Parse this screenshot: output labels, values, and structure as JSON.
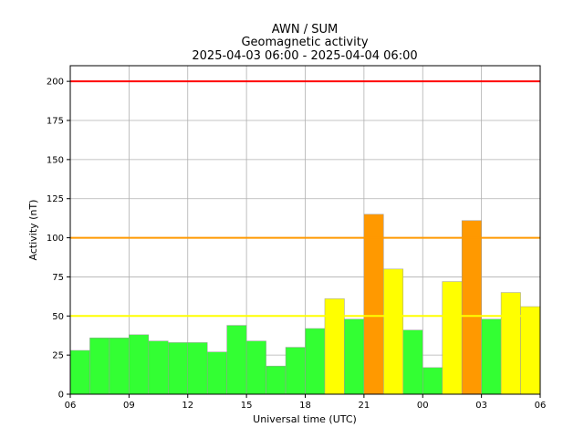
{
  "chart_data": {
    "type": "bar",
    "title_lines": [
      "AWN / SUM",
      "Geomagnetic activity",
      "2025-04-03 06:00 - 2025-04-04 06:00"
    ],
    "xlabel": "Universal time (UTC)",
    "ylabel": "Activity (nT)",
    "x_tick_labels": [
      "06",
      "09",
      "12",
      "15",
      "18",
      "21",
      "00",
      "03",
      "06"
    ],
    "y_ticks": [
      0,
      25,
      50,
      75,
      100,
      125,
      150,
      175,
      200
    ],
    "ylim": [
      0,
      210
    ],
    "grid": true,
    "values": [
      28,
      36,
      36,
      38,
      34,
      33,
      33,
      27,
      44,
      34,
      18,
      30,
      42,
      61,
      48,
      115,
      80,
      41,
      17,
      72,
      111,
      48,
      65,
      56
    ],
    "bar_colors": [
      "#33ff33",
      "#33ff33",
      "#33ff33",
      "#33ff33",
      "#33ff33",
      "#33ff33",
      "#33ff33",
      "#33ff33",
      "#33ff33",
      "#33ff33",
      "#33ff33",
      "#33ff33",
      "#33ff33",
      "#ffff00",
      "#33ff33",
      "#ff9900",
      "#ffff00",
      "#33ff33",
      "#33ff33",
      "#ffff00",
      "#ff9900",
      "#33ff33",
      "#ffff00",
      "#ffff00"
    ],
    "threshold_lines": [
      {
        "value": 200,
        "color": "#ff0000"
      },
      {
        "value": 100,
        "color": "#ff9900"
      },
      {
        "value": 50,
        "color": "#ffff00"
      }
    ]
  }
}
